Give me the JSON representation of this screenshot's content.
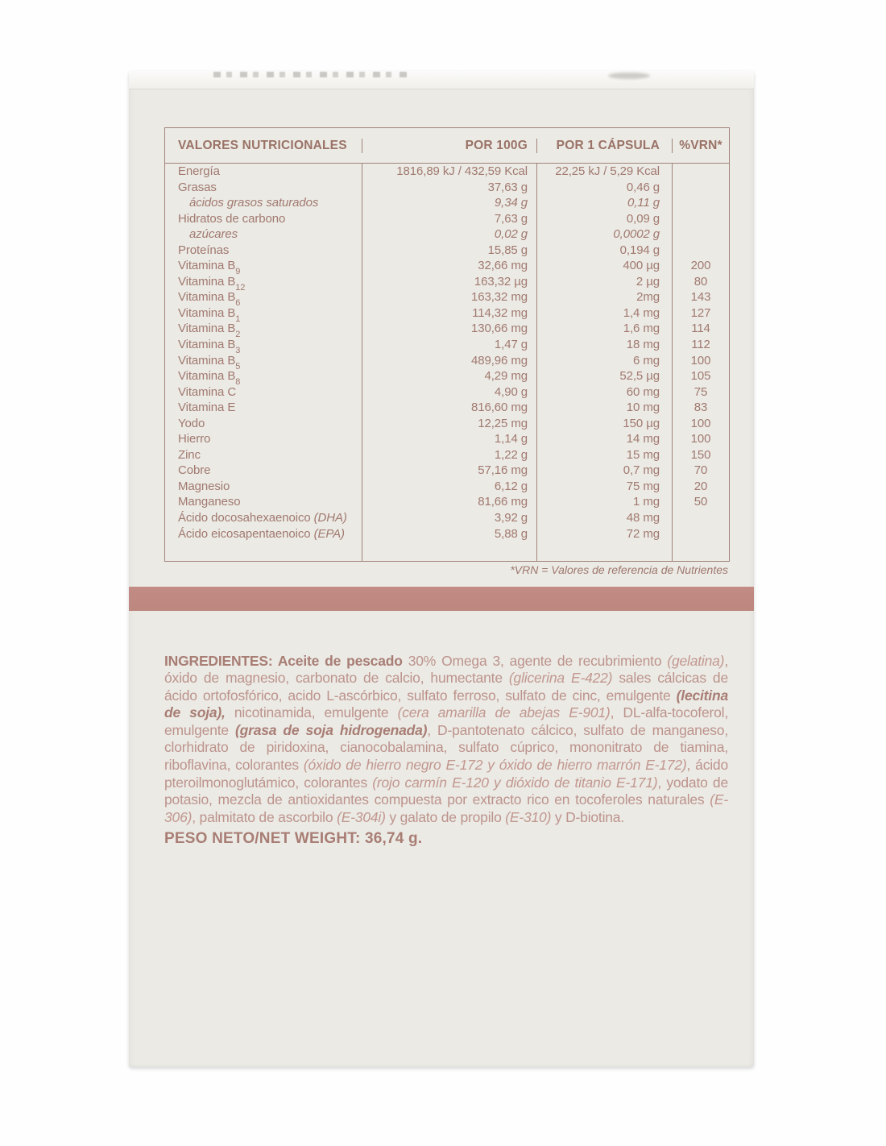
{
  "table": {
    "headers": [
      "VALORES NUTRICIONALES",
      "POR 100G",
      "POR 1 CÁPSULA",
      "%VRN*"
    ],
    "rows": [
      {
        "name": "Energía",
        "per_100g": "1816,89 kJ / 432,59 Kcal",
        "per_capsule": "22,25 kJ / 5,29 Kcal",
        "vrn": ""
      },
      {
        "name": "Grasas",
        "per_100g": "37,63 g",
        "per_capsule": "0,46 g",
        "vrn": ""
      },
      {
        "name": "ácidos grasos saturados",
        "per_100g": "9,34 g",
        "per_capsule": "0,11 g",
        "vrn": ""
      },
      {
        "name": "Hidratos de carbono",
        "per_100g": "7,63 g",
        "per_capsule": "0,09 g",
        "vrn": ""
      },
      {
        "name": "azúcares",
        "per_100g": "0,02 g",
        "per_capsule": "0,0002 g",
        "vrn": ""
      },
      {
        "name": "Proteínas",
        "per_100g": "15,85 g",
        "per_capsule": "0,194 g",
        "vrn": ""
      },
      {
        "name": "Vitamina B",
        "sub": "9",
        "per_100g": "32,66 mg",
        "per_capsule": "400 µg",
        "vrn": "200"
      },
      {
        "name": "Vitamina B",
        "sub": "12",
        "per_100g": "163,32 µg",
        "per_capsule": "2 µg",
        "vrn": "80"
      },
      {
        "name": "Vitamina B",
        "sub": "6",
        "per_100g": "163,32 mg",
        "per_capsule": "2mg",
        "vrn": "143"
      },
      {
        "name": "Vitamina B",
        "sub": "1",
        "per_100g": "114,32 mg",
        "per_capsule": "1,4 mg",
        "vrn": "127"
      },
      {
        "name": "Vitamina B",
        "sub": "2",
        "per_100g": "130,66 mg",
        "per_capsule": "1,6 mg",
        "vrn": "114"
      },
      {
        "name": "Vitamina B",
        "sub": "3",
        "per_100g": "1,47 g",
        "per_capsule": "18 mg",
        "vrn": "112"
      },
      {
        "name": "Vitamina B",
        "sub": "5",
        "per_100g": "489,96 mg",
        "per_capsule": "6 mg",
        "vrn": "100"
      },
      {
        "name": "Vitamina B",
        "sub": "8",
        "per_100g": "4,29 mg",
        "per_capsule": "52,5 µg",
        "vrn": "105"
      },
      {
        "name": "Vitamina C",
        "per_100g": "4,90 g",
        "per_capsule": "60 mg",
        "vrn": "75"
      },
      {
        "name": "Vitamina E",
        "per_100g": "816,60 mg",
        "per_capsule": "10 mg",
        "vrn": "83"
      },
      {
        "name": "Yodo",
        "per_100g": "12,25 mg",
        "per_capsule": "150 µg",
        "vrn": "100"
      },
      {
        "name": "Hierro",
        "per_100g": "1,14 g",
        "per_capsule": "14 mg",
        "vrn": "100"
      },
      {
        "name": "Zinc",
        "per_100g": "1,22 g",
        "per_capsule": "15 mg",
        "vrn": "150"
      },
      {
        "name": "Cobre",
        "per_100g": "57,16 mg",
        "per_capsule": "0,7 mg",
        "vrn": "70"
      },
      {
        "name": "Magnesio",
        "per_100g": "6,12 g",
        "per_capsule": "75 mg",
        "vrn": "20"
      },
      {
        "name": "Manganeso",
        "per_100g": "81,66 mg",
        "per_capsule": "1 mg",
        "vrn": "50"
      },
      {
        "name": "Ácido docosahexaenoico ",
        "name_italic": "(DHA)",
        "per_100g": "3,92 g",
        "per_capsule": "48 mg",
        "vrn": ""
      },
      {
        "name": "Ácido eicosapentaenoico ",
        "name_italic": "(EPA)",
        "per_100g": "5,88 g",
        "per_capsule": "72 mg",
        "vrn": ""
      }
    ],
    "footnote": "*VRN = Valores de referencia de Nutrientes"
  },
  "ingredients": {
    "segments": [
      {
        "text": "INGREDIENTES: Aceite de pescado "
      },
      {
        "text": "30% Omega 3, agente de recubrimiento "
      },
      {
        "text": "(gelatina)"
      },
      {
        "text": ", óxido de magnesio, carbonato de calcio, humectante "
      },
      {
        "text": "(glicerina E-422)"
      },
      {
        "text": " sales cálcicas de ácido ortofosfórico, acido L-ascórbico, sulfato ferroso, sulfato de cinc, emulgente "
      },
      {
        "text": "(lecitina de soja),"
      },
      {
        "text": " nicotinamida, emulgente "
      },
      {
        "text": "(cera amarilla de abejas E-901)"
      },
      {
        "text": ", DL-alfa-tocoferol, emulgente "
      },
      {
        "text": "(grasa de soja hidrogenada)"
      },
      {
        "text": ", D-pantotenato cálcico, sulfato de manganeso, clorhidrato de piridoxina, cianocobalamina, sulfato cúprico, mononitrato de tiamina, riboflavina, colorantes "
      },
      {
        "text": "(óxido de hierro negro E-172 y óxido de hierro marrón E-172)"
      },
      {
        "text": ", ácido pteroilmonoglutámico, colorantes "
      },
      {
        "text": "(rojo carmín E-120 y dióxido de titanio E-171)"
      },
      {
        "text": ", yodato de potasio, mezcla de antioxidantes compuesta por extracto rico en tocoferoles naturales "
      },
      {
        "text": "(E-306)"
      },
      {
        "text": ", palmitato de ascorbilo "
      },
      {
        "text": "(E-304i)"
      },
      {
        "text": " y galato de propilo "
      },
      {
        "text": "(E-310)"
      },
      {
        "text": " y D-biotina."
      }
    ]
  },
  "net_weight": "PESO NETO/NET WEIGHT: 36,74 g.",
  "colors": {
    "band_accent": "#bf8981",
    "table_text": "#a1796f",
    "table_border": "#a1847a",
    "ingredients_text": "#bd938c",
    "box_background": "#ebeae5"
  }
}
